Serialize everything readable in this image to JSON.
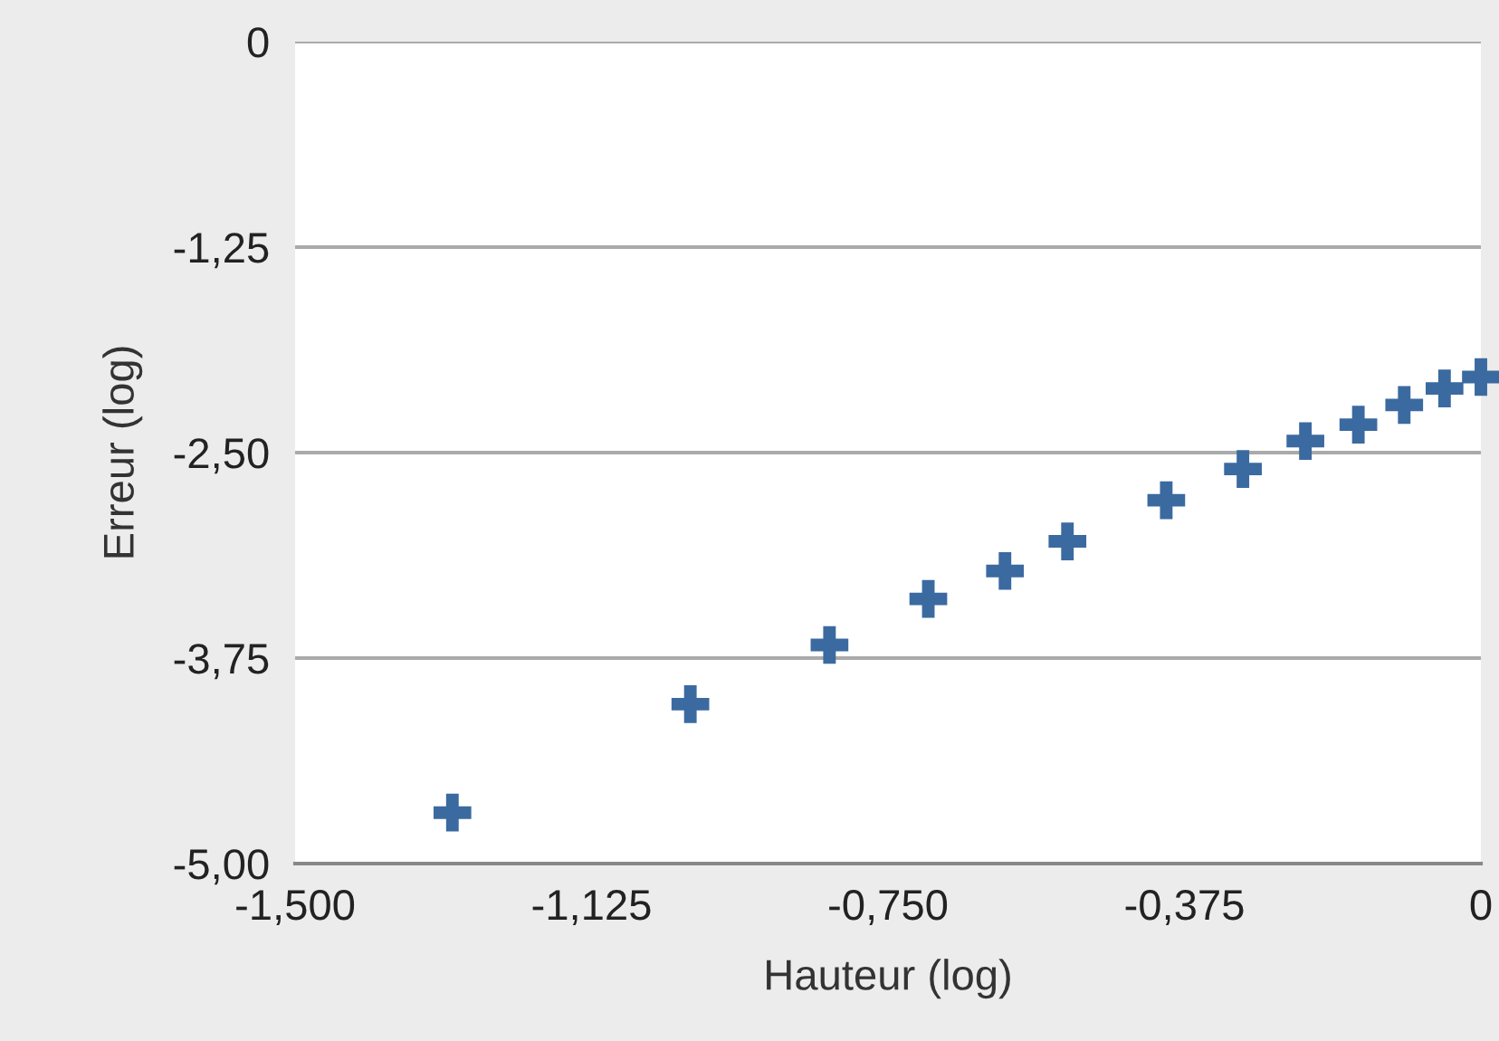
{
  "chart_data": {
    "type": "scatter",
    "xlabel": "Hauteur (log)",
    "ylabel": "Erreur (log)",
    "x": [
      -1.301,
      -1.0,
      -0.824,
      -0.699,
      -0.602,
      -0.523,
      -0.398,
      -0.301,
      -0.222,
      -0.155,
      -0.097,
      -0.046,
      0.0
    ],
    "series": [
      {
        "color": "#3b6aa0",
        "values": [
          -4.69,
          -4.03,
          -3.67,
          -3.39,
          -3.22,
          -3.04,
          -2.79,
          -2.6,
          -2.43,
          -2.33,
          -2.21,
          -2.11,
          -2.04
        ]
      }
    ],
    "marker": "cross",
    "xlim": [
      -1.5,
      0
    ],
    "ylim": [
      -5,
      0
    ],
    "xticks": [
      {
        "value": -1.5,
        "label": "-1,500"
      },
      {
        "value": -1.125,
        "label": "-1,125"
      },
      {
        "value": -0.75,
        "label": "-0,750"
      },
      {
        "value": -0.375,
        "label": "-0,375"
      },
      0
    ],
    "yticks": [
      {
        "value": -5,
        "label": "-5,00"
      },
      {
        "value": -3.75,
        "label": "-3,75"
      },
      {
        "value": -2.5,
        "label": "-2,50"
      },
      {
        "value": -1.25,
        "label": "-1,25"
      },
      0
    ],
    "grid": "y"
  }
}
